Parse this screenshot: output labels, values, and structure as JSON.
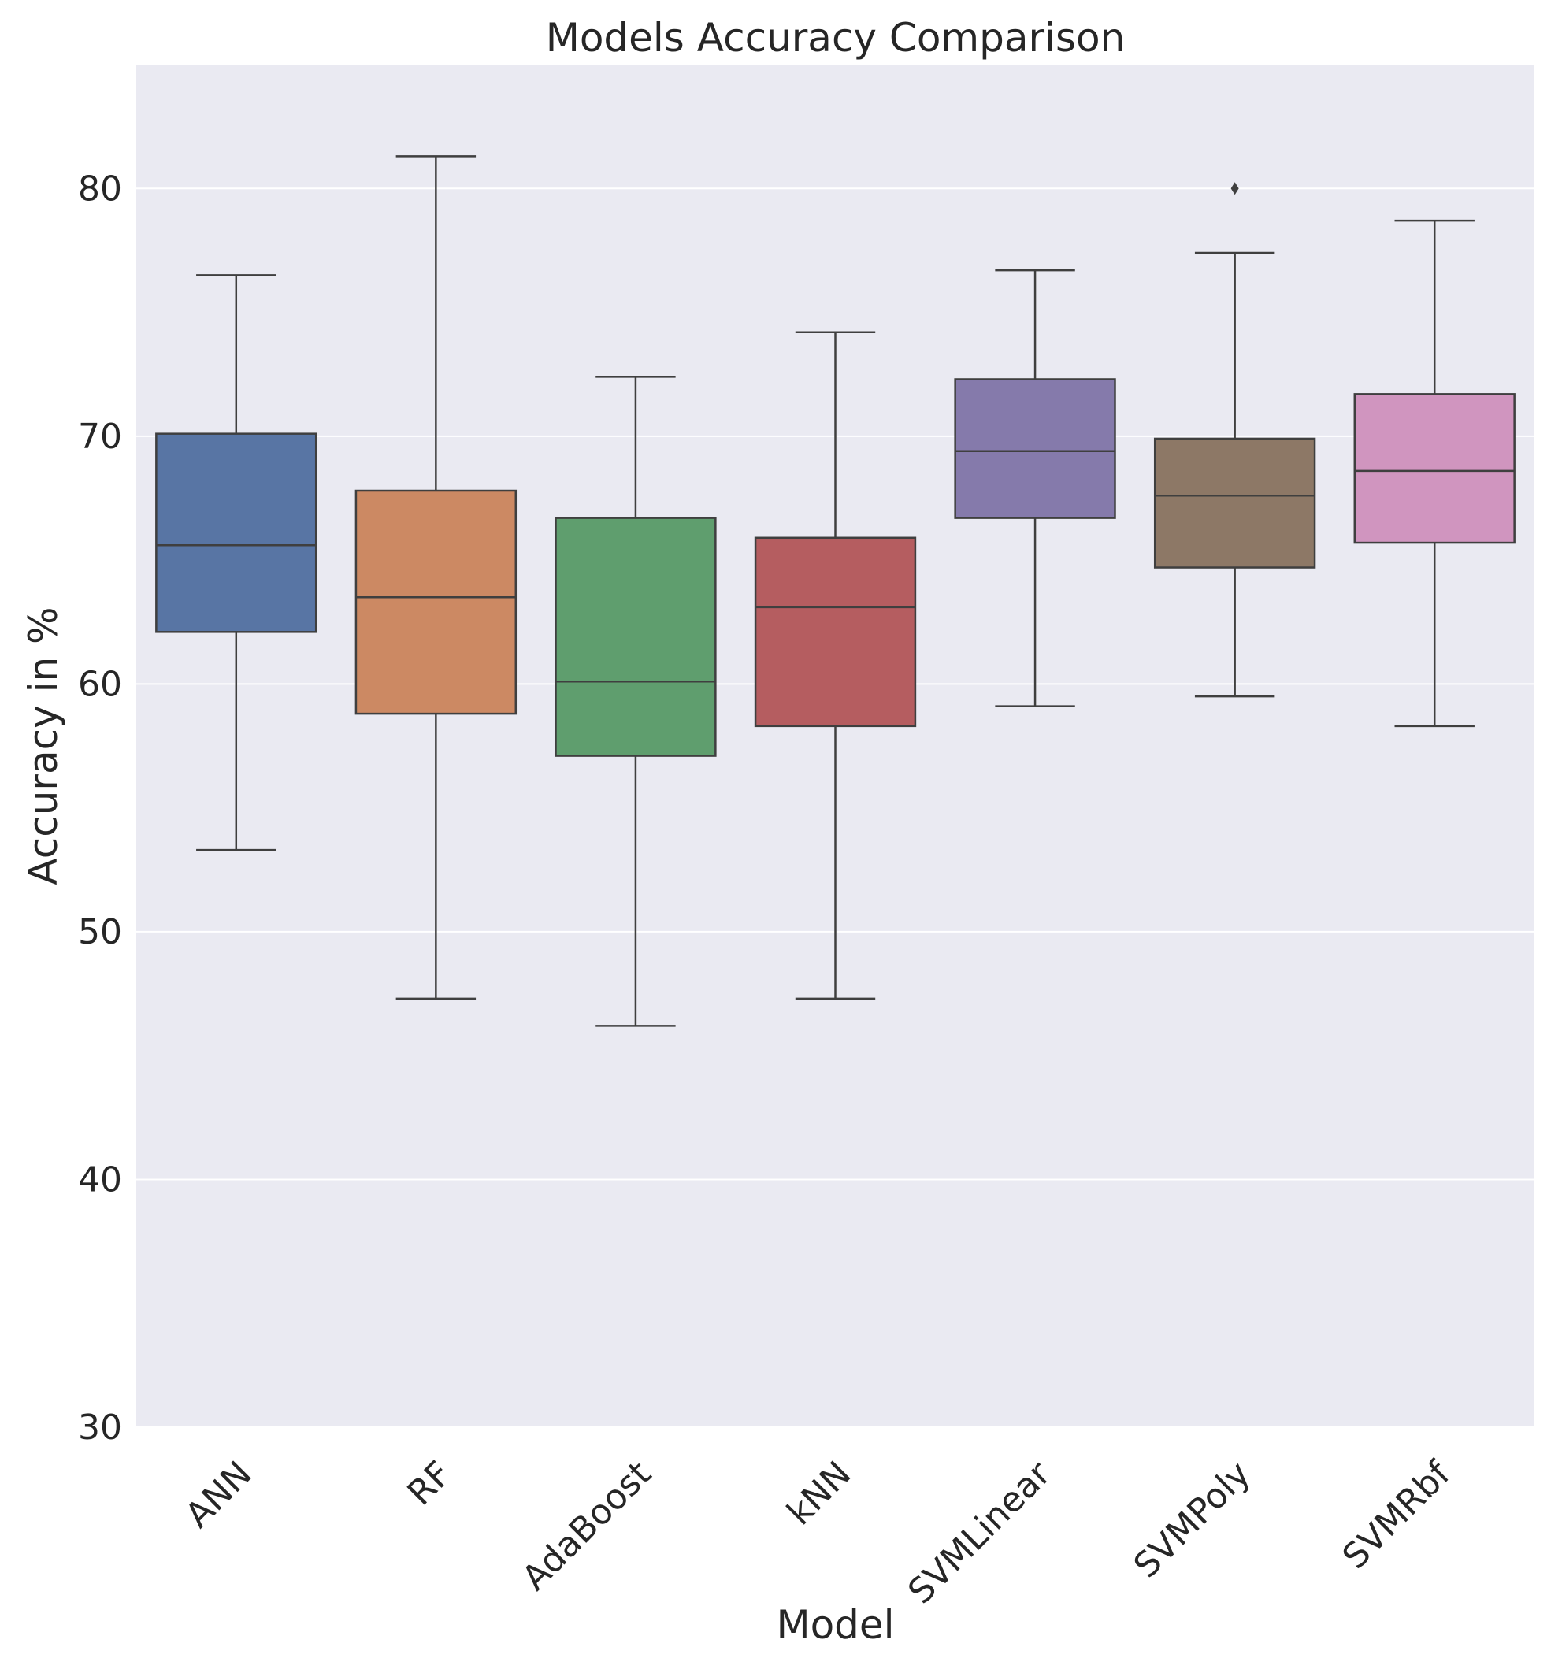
{
  "chart_data": {
    "type": "box",
    "title": "Models Accuracy Comparison",
    "xlabel": "Model",
    "ylabel": "Accuracy in %",
    "ylim": [
      30,
      85
    ],
    "yticks": [
      30,
      40,
      50,
      60,
      70,
      80
    ],
    "grid": true,
    "legend": "none",
    "categories": [
      "ANN",
      "RF",
      "AdaBoost",
      "kNN",
      "SVMLinear",
      "SVMPoly",
      "SVMRbf"
    ],
    "boxes": [
      {
        "name": "ANN",
        "whisker_low": 53.3,
        "q1": 62.1,
        "median": 65.6,
        "q3": 70.1,
        "whisker_high": 76.5,
        "outliers": [],
        "color": "#5875a4"
      },
      {
        "name": "RF",
        "whisker_low": 47.3,
        "q1": 58.8,
        "median": 63.5,
        "q3": 67.8,
        "whisker_high": 81.3,
        "outliers": [],
        "color": "#cc8963"
      },
      {
        "name": "AdaBoost",
        "whisker_low": 46.2,
        "q1": 57.1,
        "median": 60.1,
        "q3": 66.7,
        "whisker_high": 72.4,
        "outliers": [],
        "color": "#5f9e6e"
      },
      {
        "name": "kNN",
        "whisker_low": 47.3,
        "q1": 58.3,
        "median": 63.1,
        "q3": 65.9,
        "whisker_high": 74.2,
        "outliers": [],
        "color": "#b55d60"
      },
      {
        "name": "SVMLinear",
        "whisker_low": 59.1,
        "q1": 66.7,
        "median": 69.4,
        "q3": 72.3,
        "whisker_high": 76.7,
        "outliers": [],
        "color": "#857aab"
      },
      {
        "name": "SVMPoly",
        "whisker_low": 59.5,
        "q1": 64.7,
        "median": 67.6,
        "q3": 69.9,
        "whisker_high": 77.4,
        "outliers": [
          80.0
        ],
        "color": "#8d7866"
      },
      {
        "name": "SVMRbf",
        "whisker_low": 58.3,
        "q1": 65.7,
        "median": 68.6,
        "q3": 71.7,
        "whisker_high": 78.7,
        "outliers": [],
        "color": "#d095bf"
      }
    ],
    "colors": {
      "plot_background": "#eaeaf2",
      "grid": "#ffffff",
      "line": "#3f3f3f"
    }
  }
}
